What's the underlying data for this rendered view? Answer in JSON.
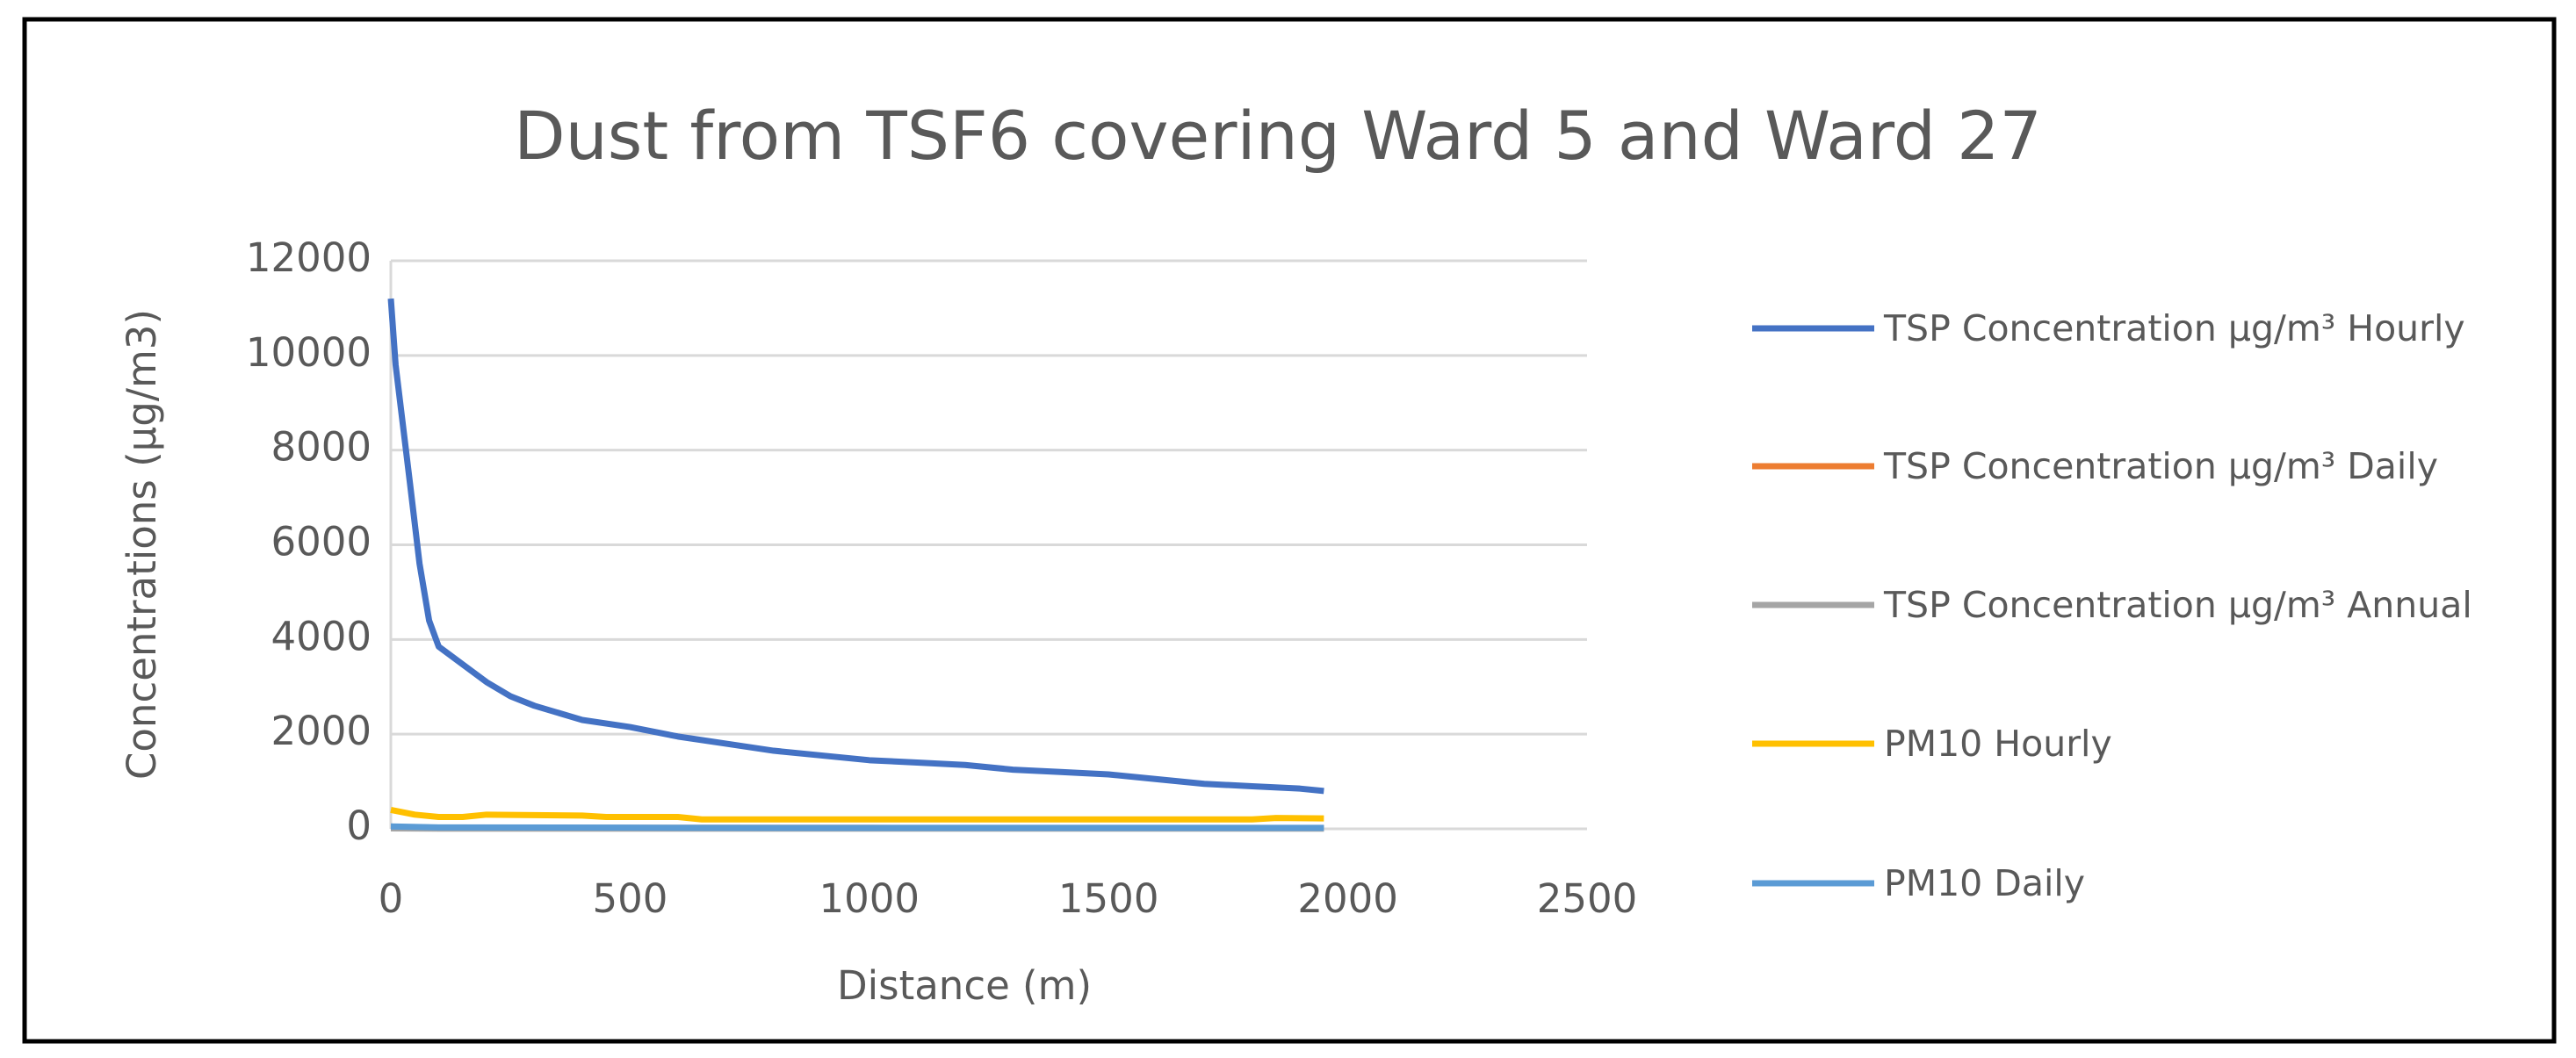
{
  "chart_data": {
    "type": "line",
    "title": "Dust from TSF6 covering Ward 5 and Ward 27",
    "x_label": "Distance (m)",
    "y_label": "Concentrations (µg/m3)",
    "xlim": [
      0,
      2500
    ],
    "xticks": [
      0,
      500,
      1000,
      1500,
      2000,
      2500
    ],
    "ylim": [
      0,
      12000
    ],
    "yticks": [
      0,
      2000,
      4000,
      6000,
      8000,
      10000,
      12000
    ],
    "grid": true,
    "legend": "right",
    "series": [
      {
        "name": "TSP Concentration µg/m³ Hourly",
        "color": "#4472c4",
        "x": [
          0,
          10,
          40,
          60,
          80,
          100,
          200,
          250,
          300,
          400,
          500,
          600,
          700,
          800,
          900,
          1000,
          1100,
          1200,
          1300,
          1400,
          1500,
          1600,
          1700,
          1800,
          1900,
          1950
        ],
        "values": [
          11200,
          9800,
          7300,
          5600,
          4400,
          3850,
          3100,
          2800,
          2600,
          2300,
          2150,
          1950,
          1800,
          1650,
          1550,
          1450,
          1400,
          1350,
          1250,
          1200,
          1150,
          1050,
          950,
          900,
          850,
          800
        ]
      },
      {
        "name": "TSP Concentration µg/m³ Daily",
        "color": "#ed7d31",
        "x": [
          0,
          100,
          500,
          1000,
          1500,
          1950
        ],
        "values": [
          40,
          25,
          20,
          20,
          15,
          15
        ]
      },
      {
        "name": "TSP Concentration µg/m³ Annual",
        "color": "#a5a5a5",
        "x": [
          0,
          100,
          500,
          1000,
          1500,
          1950
        ],
        "values": [
          10,
          5,
          5,
          5,
          5,
          5
        ]
      },
      {
        "name": "PM10 Hourly",
        "color": "#ffc000",
        "x": [
          0,
          50,
          100,
          150,
          200,
          400,
          450,
          600,
          650,
          1000,
          1500,
          1600,
          1800,
          1850,
          1950
        ],
        "values": [
          400,
          300,
          250,
          250,
          300,
          280,
          250,
          250,
          200,
          200,
          200,
          200,
          200,
          230,
          220
        ]
      },
      {
        "name": "PM10 Daily",
        "color": "#5b9bd5",
        "x": [
          0,
          100,
          500,
          1000,
          1500,
          1950
        ],
        "values": [
          50,
          30,
          25,
          20,
          20,
          20
        ]
      }
    ]
  }
}
